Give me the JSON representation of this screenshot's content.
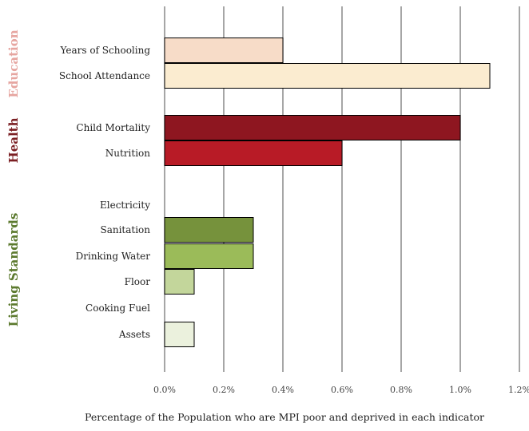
{
  "chart_data": {
    "type": "bar",
    "orientation": "horizontal",
    "title": "",
    "xlabel": "Percentage of the Population who are MPI poor and deprived in each indicator",
    "ylabel": "",
    "xlim": [
      0,
      1.2
    ],
    "x_ticks": [
      "0.0%",
      "0.2%",
      "0.4%",
      "0.6%",
      "0.8%",
      "1.0%",
      "1.2%"
    ],
    "grid": true,
    "legend": "none",
    "groups": [
      {
        "name": "Education",
        "color": "#e6a5a0",
        "categories": [
          {
            "name": "Years of Schooling",
            "value": 0.4,
            "color": "#f7dcc8"
          },
          {
            "name": "School Attendance",
            "value": 1.1,
            "color": "#fbecd0"
          }
        ]
      },
      {
        "name": "Health",
        "color": "#7b1f23",
        "categories": [
          {
            "name": "Child Mortality",
            "value": 1.0,
            "color": "#8e1620"
          },
          {
            "name": "Nutrition",
            "value": 0.6,
            "color": "#b81b26"
          }
        ]
      },
      {
        "name": "Living Standards",
        "color": "#5c7a2e",
        "categories": [
          {
            "name": "Electricity",
            "value": 0,
            "color": "#6f9a3a"
          },
          {
            "name": "Sanitation",
            "value": 0.3,
            "color": "#76923c"
          },
          {
            "name": "Drinking Water",
            "value": 0.3,
            "color": "#9bbb59"
          },
          {
            "name": "Floor",
            "value": 0.1,
            "color": "#c3d69b"
          },
          {
            "name": "Cooking Fuel",
            "value": 0,
            "color": "#d7e4bd"
          },
          {
            "name": "Assets",
            "value": 0.1,
            "color": "#ebf1dd"
          }
        ]
      }
    ]
  }
}
